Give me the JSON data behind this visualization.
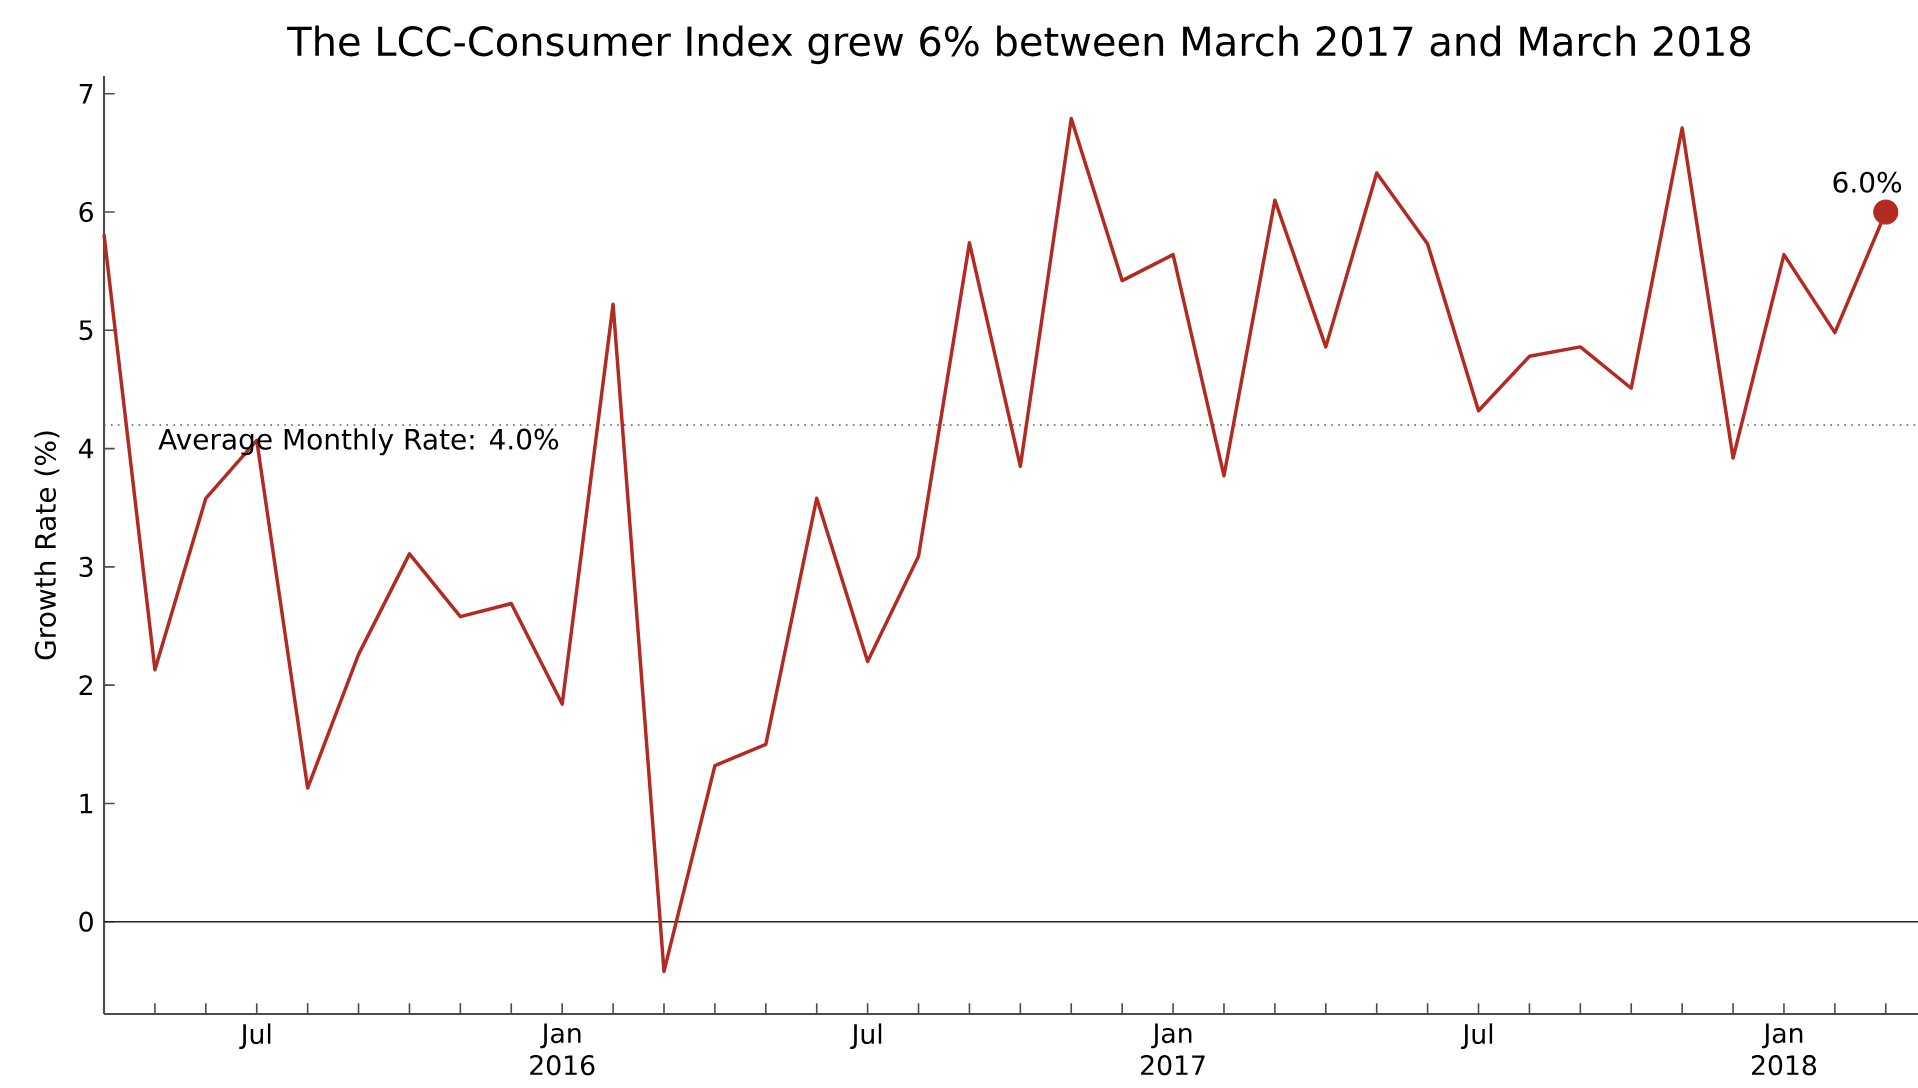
{
  "chart_data": {
    "type": "line",
    "title": "The LCC-Consumer Index grew 6% between March 2017 and March 2018",
    "ylabel": "Growth Rate (%)",
    "x": [
      "2015-04",
      "2015-05",
      "2015-06",
      "2015-07",
      "2015-08",
      "2015-09",
      "2015-10",
      "2015-11",
      "2015-12",
      "2016-01",
      "2016-02",
      "2016-03",
      "2016-04",
      "2016-05",
      "2016-06",
      "2016-07",
      "2016-08",
      "2016-09",
      "2016-10",
      "2016-11",
      "2016-12",
      "2017-01",
      "2017-02",
      "2017-03",
      "2017-04",
      "2017-05",
      "2017-06",
      "2017-07",
      "2017-08",
      "2017-09",
      "2017-10",
      "2017-11",
      "2017-12",
      "2018-01",
      "2018-02",
      "2018-03"
    ],
    "series": [
      {
        "color": "#b22a22",
        "line_style": "solid",
        "marker": "none",
        "values": [
          5.81,
          2.13,
          3.58,
          4.07,
          1.13,
          2.26,
          3.11,
          2.58,
          2.69,
          1.84,
          5.22,
          -0.42,
          1.32,
          1.5,
          3.58,
          2.2,
          3.09,
          5.74,
          3.85,
          6.79,
          5.42,
          5.64,
          3.77,
          6.1,
          4.86,
          6.33,
          5.73,
          4.32,
          4.78,
          4.86,
          4.51,
          6.71,
          3.92,
          5.64,
          4.98,
          6.0
        ]
      },
      {
        "type": "scatter",
        "color": "#b22a22",
        "marker": "circle",
        "x": [
          "2018-03"
        ],
        "values": [
          6.0
        ]
      }
    ],
    "annotations": [
      {
        "text": "6.0%",
        "x": "2018-03",
        "y": 6.0
      },
      "Average Monthly Rate: 4.0%"
    ],
    "ref_lines": [
      {
        "axis": "y",
        "value": 4.2,
        "color": "#555555",
        "line_style": "dotted"
      },
      {
        "axis": "y",
        "value": 0,
        "color": "#222222",
        "line_style": "solid"
      }
    ],
    "xlim": [
      "2015-04-01",
      "2018-03-20"
    ],
    "xticks": [
      {
        "value": "2015-04",
        "label": null
      },
      {
        "value": "2015-05",
        "label": null
      },
      {
        "value": "2015-06",
        "label": null
      },
      {
        "value": "2015-07",
        "label": "Jul"
      },
      {
        "value": "2015-08",
        "label": null
      },
      {
        "value": "2015-09",
        "label": null
      },
      {
        "value": "2015-10",
        "label": null
      },
      {
        "value": "2015-11",
        "label": null
      },
      {
        "value": "2015-12",
        "label": null
      },
      {
        "value": "2016-01",
        "label": "Jan 2016"
      },
      {
        "value": "2016-02",
        "label": null
      },
      {
        "value": "2016-03",
        "label": null
      },
      {
        "value": "2016-04",
        "label": null
      },
      {
        "value": "2016-05",
        "label": null
      },
      {
        "value": "2016-06",
        "label": null
      },
      {
        "value": "2016-07",
        "label": "Jul"
      },
      {
        "value": "2016-08",
        "label": null
      },
      {
        "value": "2016-09",
        "label": null
      },
      {
        "value": "2016-10",
        "label": null
      },
      {
        "value": "2016-11",
        "label": null
      },
      {
        "value": "2016-12",
        "label": null
      },
      {
        "value": "2017-01",
        "label": "Jan 2017"
      },
      {
        "value": "2017-02",
        "label": null
      },
      {
        "value": "2017-03",
        "label": null
      },
      {
        "value": "2017-04",
        "label": null
      },
      {
        "value": "2017-05",
        "label": null
      },
      {
        "value": "2017-06",
        "label": null
      },
      {
        "value": "2017-07",
        "label": "Jul"
      },
      {
        "value": "2017-08",
        "label": null
      },
      {
        "value": "2017-09",
        "label": null
      },
      {
        "value": "2017-10",
        "label": null
      },
      {
        "value": "2017-11",
        "label": null
      },
      {
        "value": "2017-12",
        "label": null
      },
      {
        "value": "2018-01",
        "label": "Jan 2018"
      },
      {
        "value": "2018-02",
        "label": null
      },
      {
        "value": "2018-03",
        "label": null
      }
    ],
    "ylim": [
      -0.78,
      7.15
    ],
    "yticks": [
      0,
      1,
      2,
      3,
      4,
      5,
      6,
      7
    ],
    "grid": false,
    "legend": false
  }
}
